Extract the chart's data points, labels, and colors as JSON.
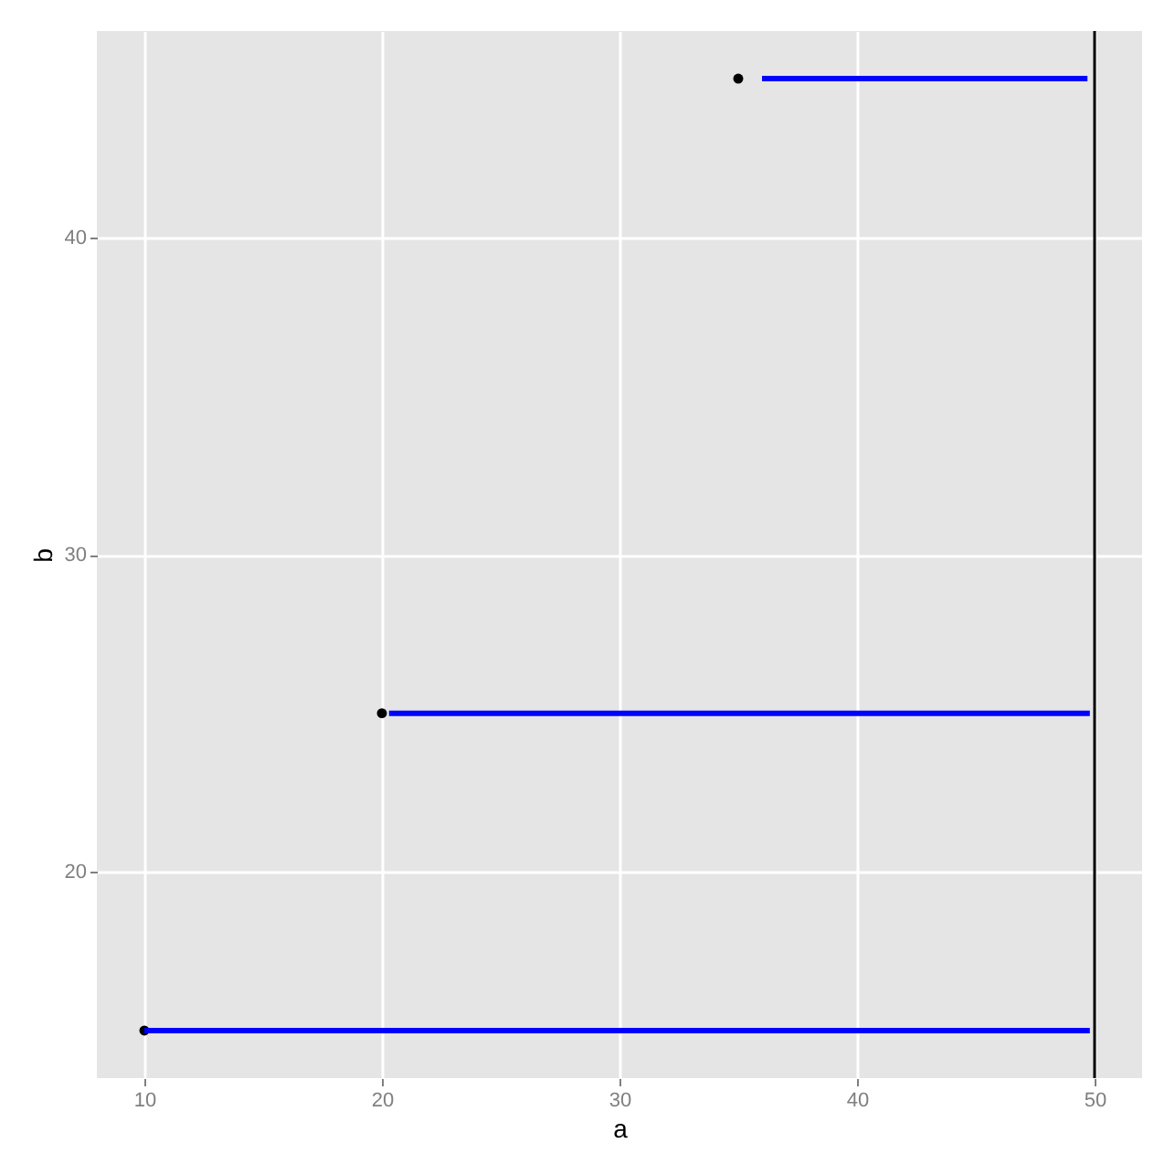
{
  "chart_data": {
    "type": "scatter",
    "xlabel": "a",
    "ylabel": "b",
    "xlim": [
      8,
      52
    ],
    "ylim": [
      13.5,
      46.5
    ],
    "xticks": [
      10,
      20,
      30,
      40,
      50
    ],
    "yticks": [
      20,
      30,
      40
    ],
    "grid": true,
    "series": [
      {
        "color": "#000000",
        "x": [
          10,
          20,
          35
        ],
        "values": [
          15,
          25,
          45
        ],
        "marker": "circle"
      },
      {
        "type": "line",
        "color": "#0000ff",
        "x": [
          10,
          49.8
        ],
        "values": [
          15,
          15
        ],
        "line_style": "solid",
        "marker": "none"
      },
      {
        "type": "line",
        "color": "#0000ff",
        "x": [
          20.3,
          49.8
        ],
        "values": [
          25,
          25
        ],
        "line_style": "solid",
        "marker": "none"
      },
      {
        "type": "line",
        "color": "#0000ff",
        "x": [
          36,
          49.7
        ],
        "values": [
          45,
          45
        ],
        "line_style": "solid",
        "marker": "none"
      }
    ],
    "ref_lines": [
      {
        "axis": "x",
        "value": 50,
        "color": "#000000",
        "line_style": "solid"
      }
    ]
  }
}
